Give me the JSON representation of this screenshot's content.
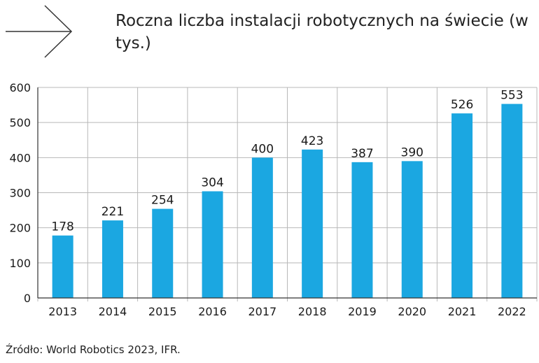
{
  "title": "Roczna liczba instalacji robotycznych na świecie (w tys.)",
  "source": "Źródło: World Robotics 2023, IFR.",
  "colors": {
    "bar": "#1ba7e1",
    "grid": "#b8b8b8",
    "axis": "#333333",
    "text": "#1a1a1a"
  },
  "chart_data": {
    "type": "bar",
    "categories": [
      "2013",
      "2014",
      "2015",
      "2016",
      "2017",
      "2018",
      "2019",
      "2020",
      "2021",
      "2022"
    ],
    "values": [
      178,
      221,
      254,
      304,
      400,
      423,
      387,
      390,
      526,
      553
    ],
    "data_labels": [
      "178",
      "221",
      "254",
      "304",
      "400",
      "423",
      "387",
      "390",
      "526",
      "553"
    ],
    "ylim": [
      0,
      600
    ],
    "yticks": [
      0,
      100,
      200,
      300,
      400,
      500,
      600
    ],
    "grid": true,
    "legend": "none"
  }
}
